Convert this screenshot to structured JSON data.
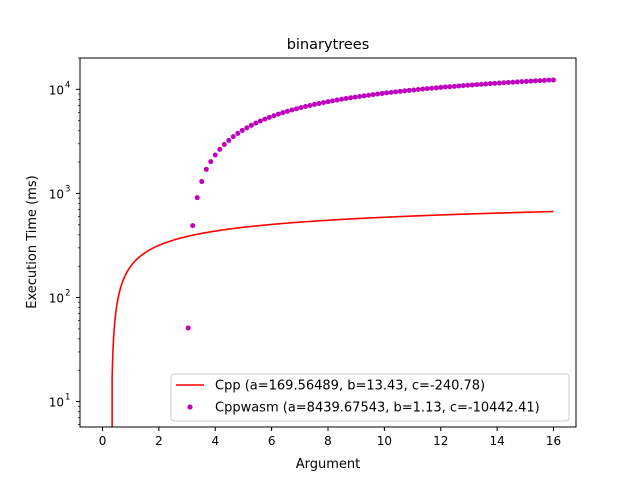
{
  "chart_data": {
    "type": "scatter",
    "title": "binarytrees",
    "xlabel": "Argument",
    "ylabel": "Execution Time (ms)",
    "xlim": [
      -0.8,
      16.8
    ],
    "ylim": [
      5.7,
      20000
    ],
    "yscale": "log",
    "grid": false,
    "legend_position": "lower-right",
    "x_ticks": [
      0,
      2,
      4,
      6,
      8,
      10,
      12,
      14,
      16
    ],
    "x_tick_labels": [
      "0",
      "2",
      "4",
      "6",
      "8",
      "10",
      "12",
      "14",
      "16"
    ],
    "y_ticks": [
      10,
      100,
      1000,
      10000
    ],
    "y_tick_labels": [
      "10",
      "10",
      "10",
      "10"
    ],
    "y_tick_exponents": [
      "1",
      "2",
      "3",
      "4"
    ],
    "series": [
      {
        "name": "Cpp (a=169.56489, b=13.43, c=-240.78)",
        "kind": "line",
        "color": "#ff0000",
        "a": 169.56489,
        "b": 13.43,
        "c": -240.78,
        "x_range": [
          0.34,
          16
        ]
      },
      {
        "name": "Cppwasm (a=8439.67543, b=1.13, c=-10442.41)",
        "kind": "scatter",
        "color": "#bf00bf",
        "x": [
          3.04,
          3.2,
          3.36,
          3.52,
          3.68,
          3.84,
          4.0,
          4.16,
          4.32,
          4.48,
          4.64,
          4.8,
          4.96,
          5.12,
          5.28,
          5.44,
          5.6,
          5.76,
          5.92,
          6.08,
          6.24,
          6.4,
          6.56,
          6.72,
          6.88,
          7.04,
          7.2,
          7.36,
          7.52,
          7.68,
          7.84,
          8.0,
          8.16,
          8.32,
          8.48,
          8.64,
          8.8,
          8.96,
          9.12,
          9.28,
          9.44,
          9.6,
          9.76,
          9.92,
          10.08,
          10.24,
          10.4,
          10.56,
          10.72,
          10.88,
          11.04,
          11.2,
          11.36,
          11.52,
          11.68,
          11.84,
          12.0,
          12.16,
          12.32,
          12.48,
          12.64,
          12.8,
          12.96,
          13.12,
          13.28,
          13.44,
          13.6,
          13.76,
          13.92,
          14.08,
          14.24,
          14.4,
          14.56,
          14.72,
          14.88,
          15.04,
          15.2,
          15.36,
          15.52,
          15.68,
          15.84,
          16.0
        ],
        "y": [
          51,
          490,
          910,
          1300,
          1700,
          2020,
          2340,
          2650,
          2950,
          3230,
          3510,
          3770,
          4030,
          4270,
          4510,
          4740,
          4960,
          5170,
          5380,
          5580,
          5780,
          5970,
          6150,
          6330,
          6500,
          6680,
          6840,
          7000,
          7160,
          7310,
          7460,
          7610,
          7750,
          7890,
          8030,
          8160,
          8290,
          8420,
          8540,
          8660,
          8780,
          8900,
          9010,
          9130,
          9240,
          9350,
          9450,
          9560,
          9660,
          9760,
          9860,
          9960,
          10060,
          10150,
          10240,
          10340,
          10430,
          10520,
          10600,
          10690,
          10780,
          10860,
          10940,
          11020,
          11100,
          11180,
          11260,
          11340,
          11410,
          11490,
          11560,
          11630,
          11700,
          11780,
          11850,
          11910,
          11980,
          12050,
          12120,
          12180,
          12250,
          12310
        ]
      }
    ]
  }
}
